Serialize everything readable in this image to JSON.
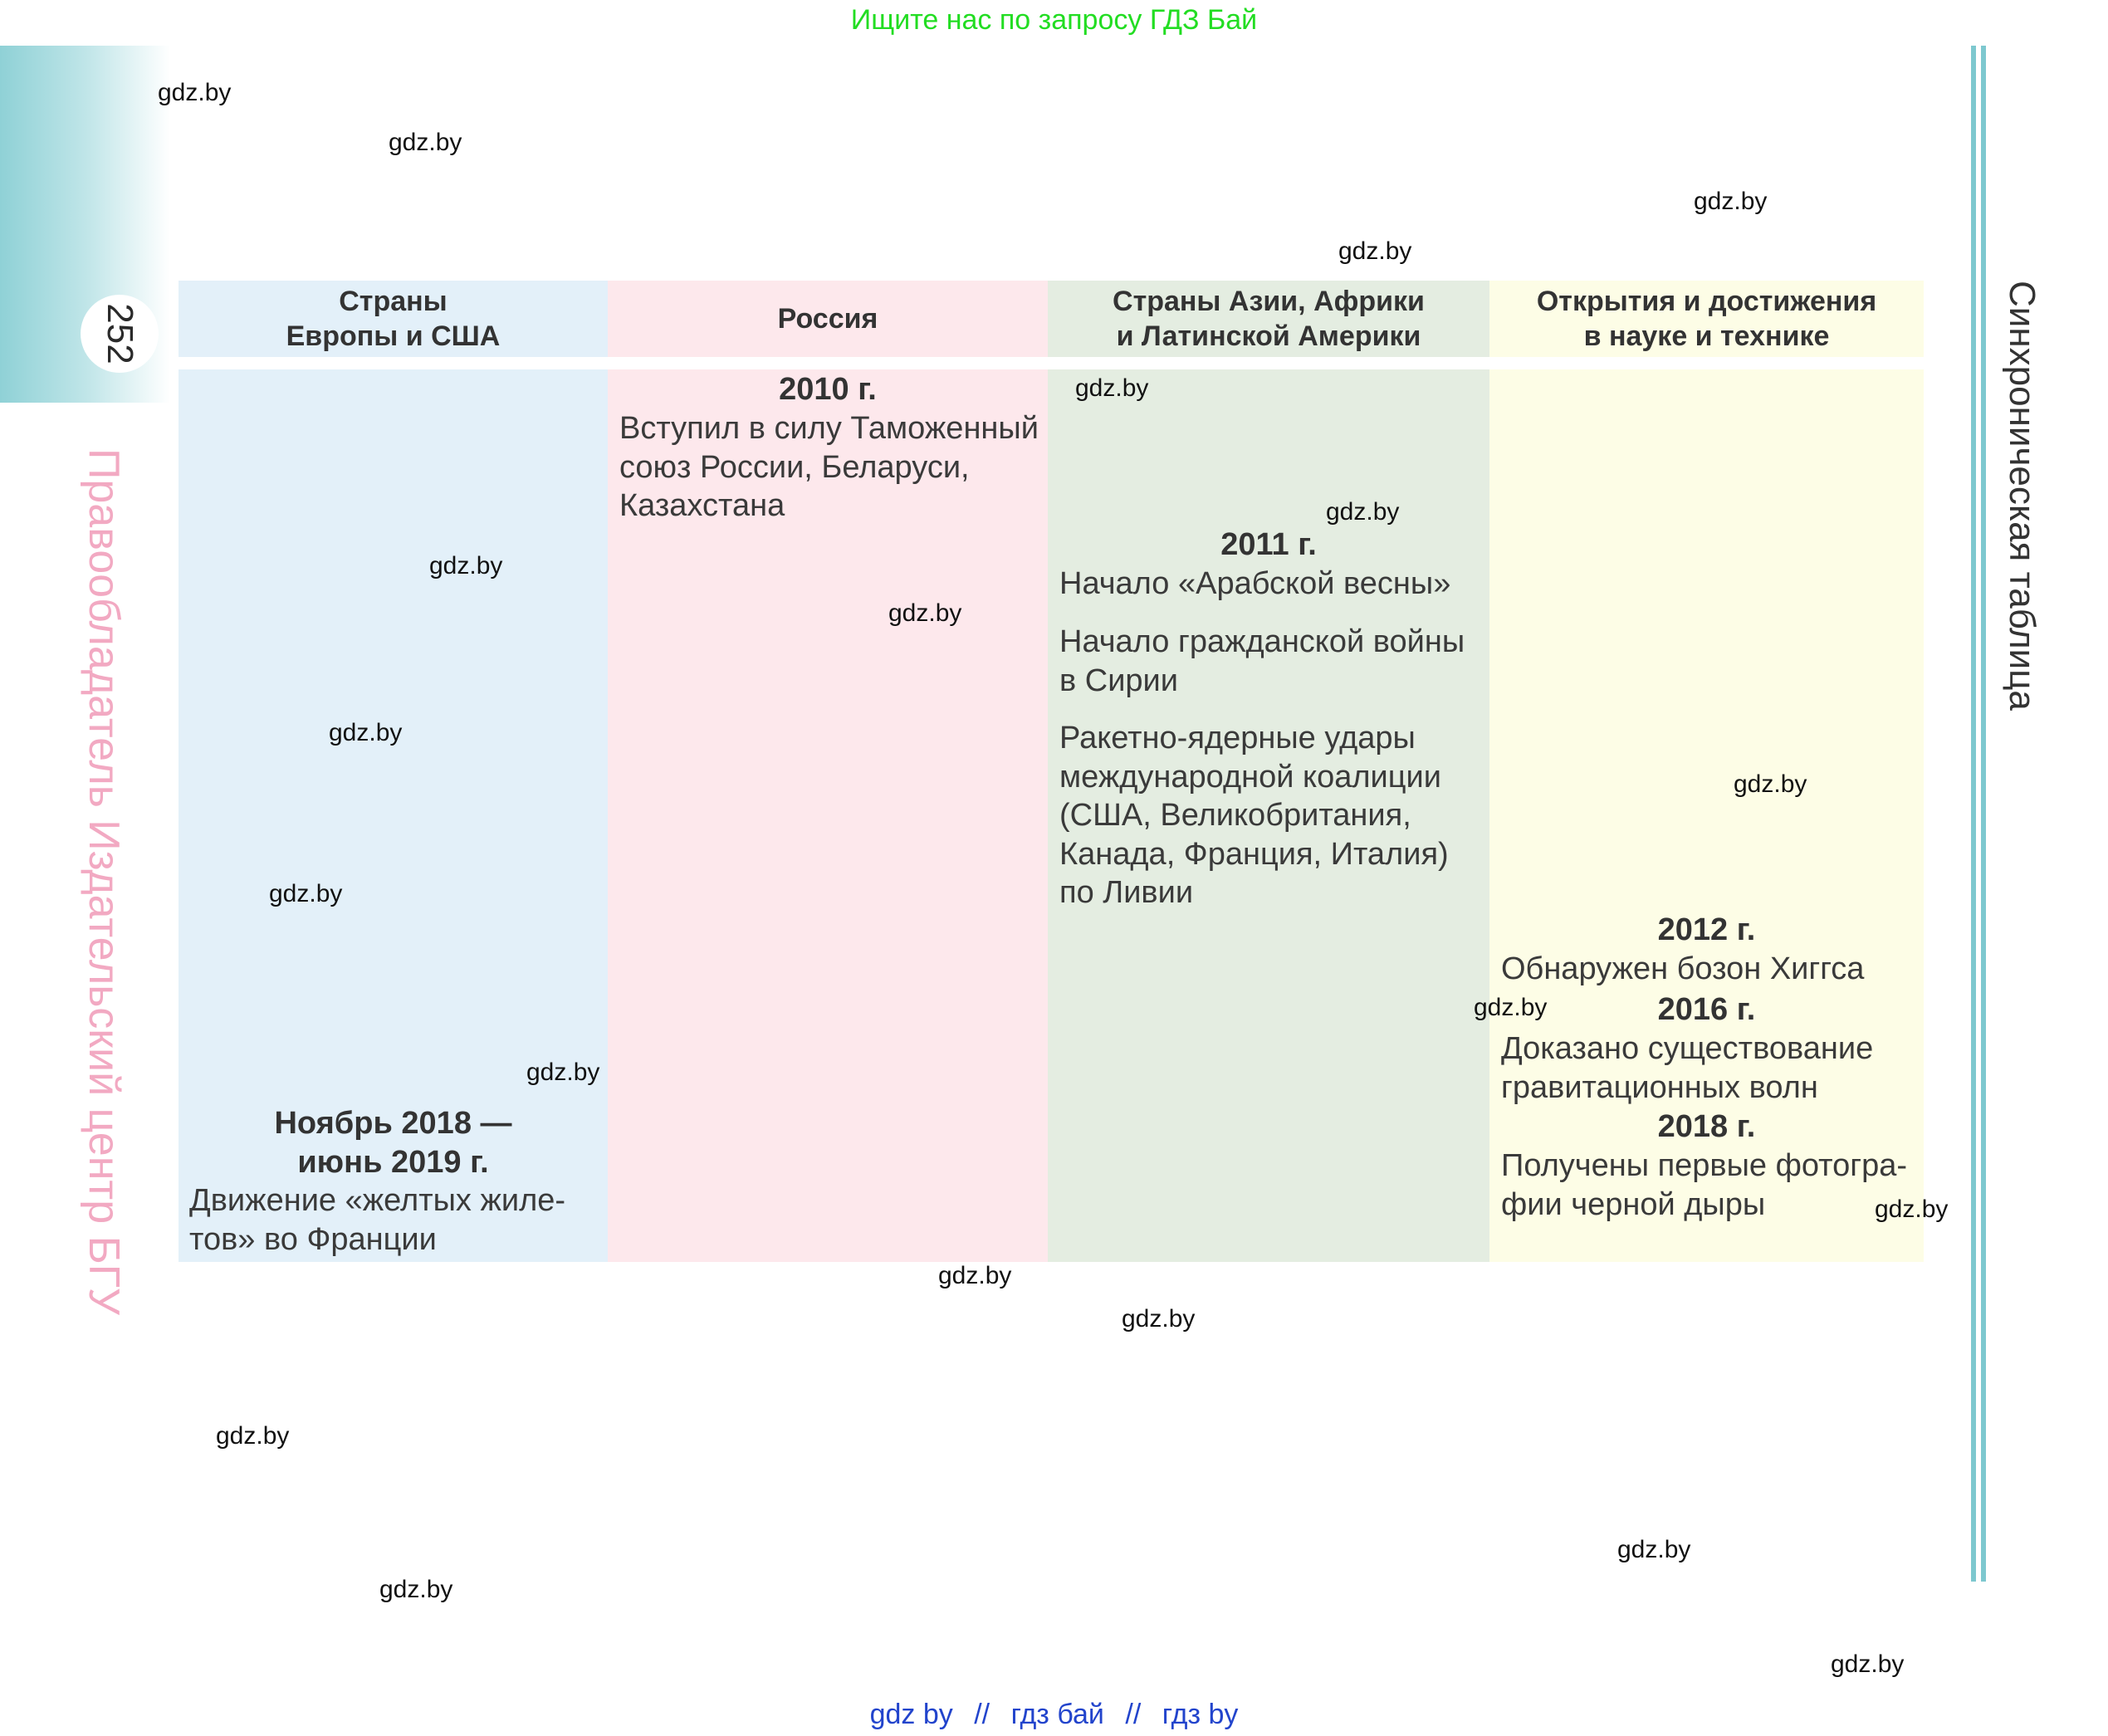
{
  "top_banner": "Ищите нас по запросу ГДЗ Бай",
  "page_number": "252",
  "publisher_vertical": "Правообладатель Издательский центр БГУ",
  "side_title": "Синхроническая таблица",
  "headers": {
    "col1_line1": "Страны",
    "col1_line2": "Европы и США",
    "col2": "Россия",
    "col3_line1": "Страны Азии, Африки",
    "col3_line2": "и Латинской Америки",
    "col4_line1": "Открытия и достижения",
    "col4_line2": "в науке и технике"
  },
  "col1": {
    "year_line1": "Ноябрь 2018 —",
    "year_line2": "июнь 2019 г.",
    "text_line1": "Движение «желтых жиле-",
    "text_line2": "тов» во Франции"
  },
  "col2": {
    "year": "2010 г.",
    "text_line1": "Вступил в силу Таможенный",
    "text_line2": "союз России, Беларуси,",
    "text_line3": "Казахстана"
  },
  "col3": {
    "year": "2011 г.",
    "item1": "Начало «Арабской весны»",
    "item2_line1": "Начало гражданской войны",
    "item2_line2": "в Сирии",
    "item3_line1": "Ракетно-ядерные удары",
    "item3_line2": "международной коалиции",
    "item3_line3": "(США, Великобритания,",
    "item3_line4": "Канада, Франция, Италия)",
    "item3_line5": "по Ливии"
  },
  "col4": {
    "year1": "2012 г.",
    "text1": "Обнаружен бозон Хиггса",
    "year2": "2016 г.",
    "text2_line1": "Доказано существование",
    "text2_line2": "гравитационных волн",
    "year3": "2018 г.",
    "text3_line1": "Получены первые фотогра-",
    "text3_line2": "фии черной дыры"
  },
  "watermark": "gdz.by",
  "bottom_links": [
    "gdz by",
    "//",
    "гдз бай",
    "//",
    "гдз by"
  ]
}
